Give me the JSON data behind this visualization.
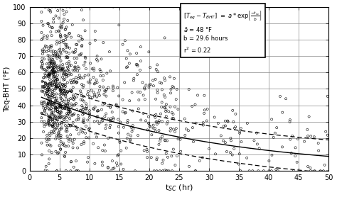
{
  "xlabel": "t$_{SC}$ (hr)",
  "ylabel": "Teq-BHT (°F)",
  "xlim": [
    0,
    50
  ],
  "ylim": [
    0,
    100
  ],
  "xticks": [
    0,
    5,
    10,
    15,
    20,
    25,
    30,
    35,
    40,
    45,
    50
  ],
  "yticks": [
    0,
    10,
    20,
    30,
    40,
    50,
    60,
    70,
    80,
    90,
    100
  ],
  "a": 48,
  "b": 29.6,
  "curve_color": "#000000",
  "scatter_color": "#000000",
  "bg_color": "#ffffff",
  "seed": 12345,
  "n_dense": 900,
  "n_sparse": 200
}
